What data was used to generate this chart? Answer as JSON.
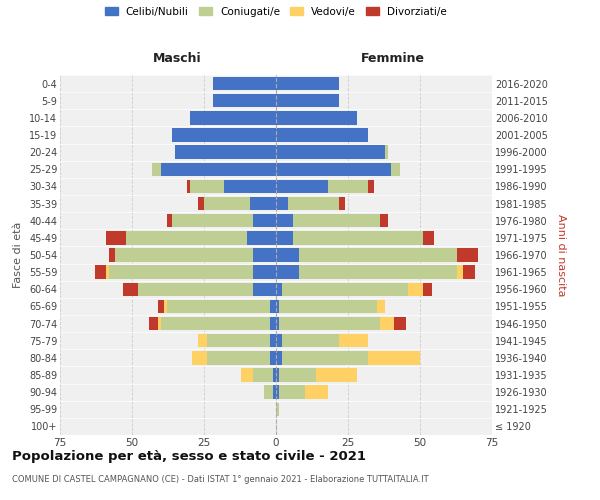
{
  "age_groups": [
    "0-4",
    "5-9",
    "10-14",
    "15-19",
    "20-24",
    "25-29",
    "30-34",
    "35-39",
    "40-44",
    "45-49",
    "50-54",
    "55-59",
    "60-64",
    "65-69",
    "70-74",
    "75-79",
    "80-84",
    "85-89",
    "90-94",
    "95-99",
    "100+"
  ],
  "birth_years": [
    "2016-2020",
    "2011-2015",
    "2006-2010",
    "2001-2005",
    "1996-2000",
    "1991-1995",
    "1986-1990",
    "1981-1985",
    "1976-1980",
    "1971-1975",
    "1966-1970",
    "1961-1965",
    "1956-1960",
    "1951-1955",
    "1946-1950",
    "1941-1945",
    "1936-1940",
    "1931-1935",
    "1926-1930",
    "1921-1925",
    "≤ 1920"
  ],
  "colors": {
    "celibe": "#4472C4",
    "coniugato": "#BFCE93",
    "vedovo": "#FFD165",
    "divorziato": "#C0392B"
  },
  "maschi": {
    "celibe": [
      22,
      22,
      30,
      36,
      35,
      40,
      18,
      9,
      8,
      10,
      8,
      8,
      8,
      2,
      2,
      2,
      2,
      1,
      1,
      0,
      0
    ],
    "coniugato": [
      0,
      0,
      0,
      0,
      0,
      3,
      12,
      16,
      28,
      42,
      48,
      50,
      40,
      36,
      38,
      22,
      22,
      7,
      3,
      0,
      0
    ],
    "vedovo": [
      0,
      0,
      0,
      0,
      0,
      0,
      0,
      0,
      0,
      0,
      0,
      1,
      0,
      1,
      1,
      3,
      5,
      4,
      0,
      0,
      0
    ],
    "divorziato": [
      0,
      0,
      0,
      0,
      0,
      0,
      1,
      2,
      2,
      7,
      2,
      4,
      5,
      2,
      3,
      0,
      0,
      0,
      0,
      0,
      0
    ]
  },
  "femmine": {
    "nubile": [
      22,
      22,
      28,
      32,
      38,
      40,
      18,
      4,
      6,
      6,
      8,
      8,
      2,
      1,
      1,
      2,
      2,
      1,
      1,
      0,
      0
    ],
    "coniugata": [
      0,
      0,
      0,
      0,
      1,
      3,
      14,
      18,
      30,
      45,
      55,
      55,
      44,
      34,
      35,
      20,
      30,
      13,
      9,
      1,
      0
    ],
    "vedova": [
      0,
      0,
      0,
      0,
      0,
      0,
      0,
      0,
      0,
      0,
      0,
      2,
      5,
      3,
      5,
      10,
      18,
      14,
      8,
      0,
      0
    ],
    "divorziata": [
      0,
      0,
      0,
      0,
      0,
      0,
      2,
      2,
      3,
      4,
      7,
      4,
      3,
      0,
      4,
      0,
      0,
      0,
      0,
      0,
      0
    ]
  },
  "xlim": 75,
  "title": "Popolazione per età, sesso e stato civile - 2021",
  "subtitle": "COMUNE DI CASTEL CAMPAGNANO (CE) - Dati ISTAT 1° gennaio 2021 - Elaborazione TUTTAITALIA.IT",
  "xlabel_left": "Maschi",
  "xlabel_right": "Femmine",
  "ylabel_left": "Fasce di età",
  "ylabel_right": "Anni di nascita",
  "legend_labels": [
    "Celibi/Nubili",
    "Coniugati/e",
    "Vedovi/e",
    "Divorziati/e"
  ],
  "background_color": "#F0F0F0",
  "grid_color": "#CCCCCC"
}
